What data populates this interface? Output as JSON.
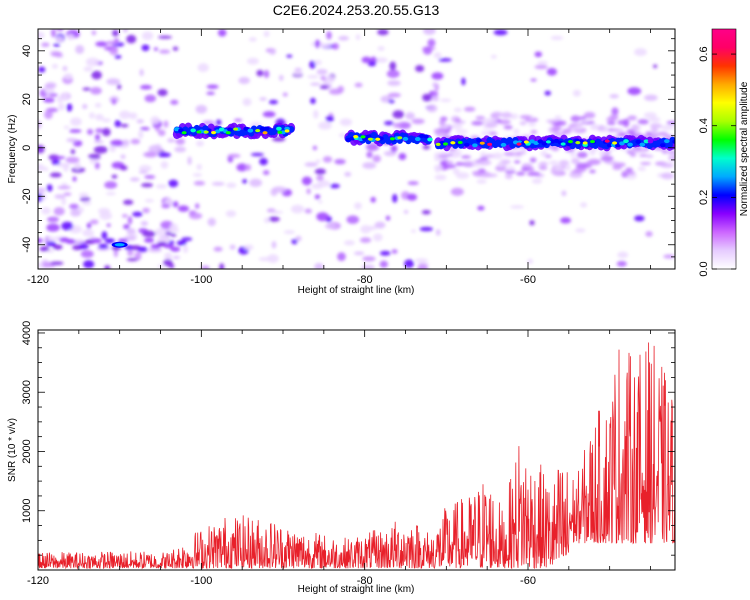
{
  "page_title": "C2E6.2024.253.20.55.G13",
  "chart_data": [
    {
      "type": "heatmap",
      "title": "C2E6.2024.253.20.55.G13",
      "xlabel": "Height of straight line (km)",
      "ylabel": "Frequency (Hz)",
      "xlim": [
        -120,
        -42
      ],
      "ylim": [
        -50,
        49
      ],
      "x_ticks": [
        -120,
        -100,
        -80,
        -60
      ],
      "y_ticks": [
        -40,
        -20,
        0,
        20,
        40
      ],
      "colorbar": {
        "label": "Normalized spectral amplitude",
        "range": [
          0,
          0.67
        ],
        "ticks": [
          0.0,
          0.2,
          0.4,
          0.6
        ],
        "colors": [
          "#ffffff",
          "#e6ccff",
          "#cc66ff",
          "#8800ff",
          "#0000ff",
          "#00aaff",
          "#00ffcc",
          "#00ff00",
          "#aaff00",
          "#ffff00",
          "#ffaa00",
          "#ff3300",
          "#ff0066",
          "#ff0088"
        ]
      },
      "band": {
        "description_free": true,
        "segments": [
          {
            "x": [
              -103,
              -89
            ],
            "freq": 7
          },
          {
            "x": [
              -82,
              -72
            ],
            "freq": 4
          },
          {
            "x": [
              -71,
              -42
            ],
            "freq": 2
          }
        ]
      },
      "features": [
        {
          "x": -110,
          "freq": -40,
          "amplitude": 0.25
        }
      ]
    },
    {
      "type": "line",
      "xlabel": "Height of straight line (km)",
      "ylabel": "SNR (10 * v/v)",
      "xlim": [
        -120,
        -42
      ],
      "ylim": [
        0,
        4050
      ],
      "x_ticks": [
        -120,
        -100,
        -80,
        -60
      ],
      "y_ticks": [
        1000,
        2000,
        3000,
        4000
      ],
      "series": [
        {
          "color": "#e8202a",
          "envelope": [
            {
              "x": -120,
              "y": 300
            },
            {
              "x": -112,
              "y": 320
            },
            {
              "x": -104,
              "y": 320
            },
            {
              "x": -101,
              "y": 650
            },
            {
              "x": -97,
              "y": 950
            },
            {
              "x": -92,
              "y": 900
            },
            {
              "x": -86,
              "y": 650
            },
            {
              "x": -82,
              "y": 550
            },
            {
              "x": -77,
              "y": 750
            },
            {
              "x": -75,
              "y": 1000
            },
            {
              "x": -72,
              "y": 650
            },
            {
              "x": -70,
              "y": 1100
            },
            {
              "x": -67,
              "y": 1300
            },
            {
              "x": -65,
              "y": 1700
            },
            {
              "x": -63,
              "y": 1000
            },
            {
              "x": -61,
              "y": 2350
            },
            {
              "x": -59,
              "y": 1900
            },
            {
              "x": -57,
              "y": 1500
            },
            {
              "x": -56,
              "y": 1950
            },
            {
              "x": -54,
              "y": 1600
            },
            {
              "x": -52,
              "y": 2600
            },
            {
              "x": -50,
              "y": 3000
            },
            {
              "x": -49,
              "y": 4050
            },
            {
              "x": -47,
              "y": 3600
            },
            {
              "x": -45,
              "y": 3950
            },
            {
              "x": -43,
              "y": 3300
            },
            {
              "x": -42,
              "y": 2900
            }
          ]
        }
      ]
    }
  ]
}
